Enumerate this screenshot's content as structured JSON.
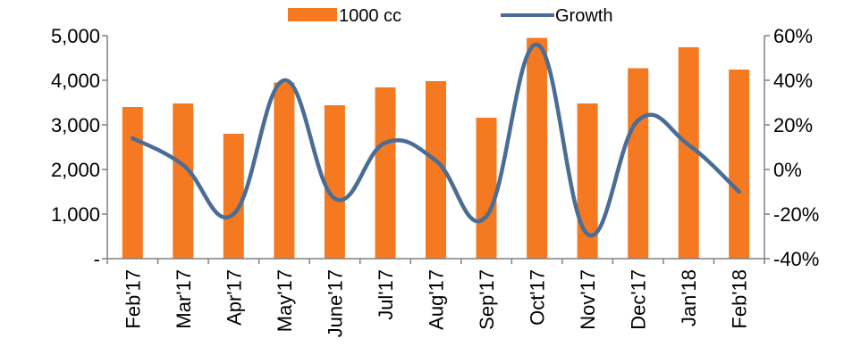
{
  "chart_data": {
    "type": "bar",
    "categories": [
      "Feb'17",
      "Mar'17",
      "Apr'17",
      "May'17",
      "June'17",
      "Jul'17",
      "Aug'17",
      "Sep'17",
      "Oct'17",
      "Nov'17",
      "Dec'17",
      "Jan'18",
      "Feb'18"
    ],
    "series": [
      {
        "name": "1000 cc",
        "type": "bar",
        "axis": "left",
        "color": "#F47920",
        "values": [
          3400,
          3480,
          2800,
          3950,
          3440,
          3840,
          3980,
          3160,
          4950,
          3480,
          4270,
          4740,
          4240
        ]
      },
      {
        "name": "Growth",
        "type": "line",
        "axis": "right",
        "color": "#4A6D96",
        "values": [
          14,
          2,
          -20,
          40,
          -13,
          12,
          4,
          -21,
          56,
          -29,
          22,
          11,
          -10
        ]
      }
    ],
    "y_left": {
      "min": 0,
      "max": 5000,
      "ticks": [
        0,
        1000,
        2000,
        3000,
        4000,
        5000
      ],
      "tick_labels": [
        "-",
        "1,000",
        "2,000",
        "3,000",
        "4,000",
        "5,000"
      ]
    },
    "y_right": {
      "min": -40,
      "max": 60,
      "ticks": [
        -40,
        -20,
        0,
        20,
        40,
        60
      ],
      "tick_labels": [
        "-40%",
        "-20%",
        "0%",
        "20%",
        "40%",
        "60%"
      ]
    },
    "legend": {
      "placement": "top-center",
      "entries": [
        "1000 cc",
        "Growth"
      ]
    },
    "grid": false,
    "title": "",
    "xlabel": "",
    "ylabel": ""
  }
}
